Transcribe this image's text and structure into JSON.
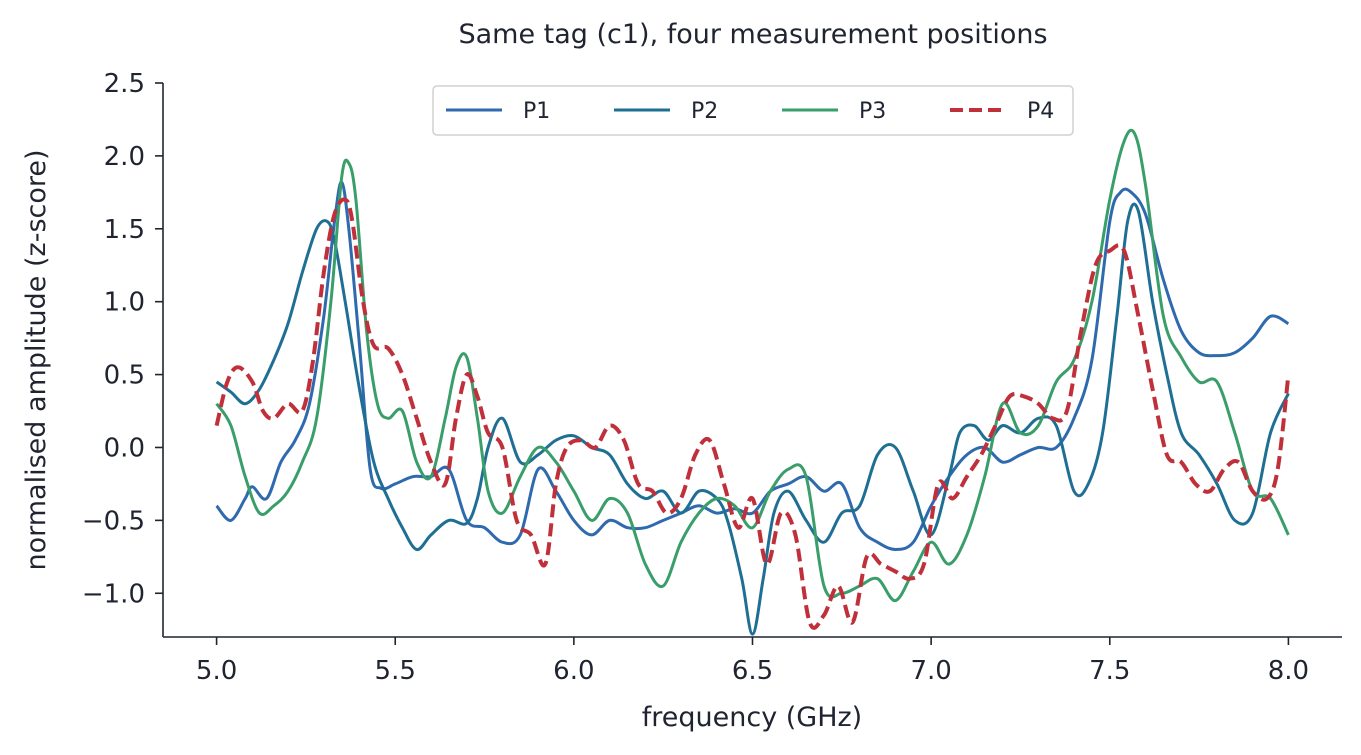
{
  "chart_data": {
    "type": "line",
    "title": "Same tag (c1), four measurement positions",
    "xlabel": "frequency (GHz)",
    "ylabel": "normalised amplitude (z-score)",
    "xlim": [
      4.85,
      8.15
    ],
    "ylim": [
      -1.3,
      2.5
    ],
    "xticks": [
      5.0,
      5.5,
      6.0,
      6.5,
      7.0,
      7.5,
      8.0
    ],
    "xtick_labels": [
      "5.0",
      "5.5",
      "6.0",
      "6.5",
      "7.0",
      "7.5",
      "8.0"
    ],
    "yticks": [
      -1.0,
      -0.5,
      0.0,
      0.5,
      1.0,
      1.5,
      2.0,
      2.5
    ],
    "ytick_labels": [
      "−1.0",
      "−0.5",
      "0.0",
      "0.5",
      "1.0",
      "1.5",
      "2.0",
      "2.5"
    ],
    "grid": false,
    "legend_position": "top-center",
    "series": [
      {
        "name": "P1",
        "color": "#2e6aad",
        "dash": "solid",
        "x": [
          5.0,
          5.04,
          5.08,
          5.1,
          5.14,
          5.18,
          5.22,
          5.26,
          5.3,
          5.33,
          5.35,
          5.37,
          5.4,
          5.43,
          5.46,
          5.5,
          5.55,
          5.6,
          5.65,
          5.7,
          5.75,
          5.8,
          5.85,
          5.9,
          5.95,
          6.0,
          6.05,
          6.1,
          6.15,
          6.2,
          6.25,
          6.3,
          6.35,
          6.4,
          6.45,
          6.5,
          6.55,
          6.6,
          6.65,
          6.7,
          6.75,
          6.8,
          6.85,
          6.9,
          6.95,
          7.0,
          7.05,
          7.1,
          7.15,
          7.2,
          7.25,
          7.3,
          7.35,
          7.4,
          7.45,
          7.5,
          7.53,
          7.56,
          7.6,
          7.65,
          7.7,
          7.75,
          7.8,
          7.85,
          7.9,
          7.95,
          8.0
        ],
        "y": [
          -0.4,
          -0.5,
          -0.35,
          -0.27,
          -0.35,
          -0.1,
          0.05,
          0.3,
          0.9,
          1.55,
          1.82,
          1.5,
          0.7,
          -0.15,
          -0.28,
          -0.25,
          -0.2,
          -0.2,
          -0.15,
          -0.5,
          -0.55,
          -0.65,
          -0.6,
          -0.15,
          -0.3,
          -0.5,
          -0.6,
          -0.5,
          -0.55,
          -0.55,
          -0.5,
          -0.45,
          -0.4,
          -0.45,
          -0.42,
          -0.45,
          -0.3,
          -0.25,
          -0.2,
          -0.3,
          -0.25,
          -0.55,
          -0.65,
          -0.7,
          -0.65,
          -0.4,
          -0.2,
          -0.05,
          0.0,
          -0.1,
          -0.05,
          0.0,
          0.0,
          0.2,
          0.6,
          1.55,
          1.75,
          1.75,
          1.6,
          1.15,
          0.8,
          0.65,
          0.63,
          0.65,
          0.75,
          0.9,
          0.85
        ]
      },
      {
        "name": "P2",
        "color": "#1f6f94",
        "dash": "solid",
        "x": [
          5.0,
          5.04,
          5.08,
          5.12,
          5.16,
          5.2,
          5.24,
          5.28,
          5.31,
          5.33,
          5.36,
          5.4,
          5.44,
          5.48,
          5.52,
          5.56,
          5.6,
          5.65,
          5.7,
          5.73,
          5.76,
          5.8,
          5.85,
          5.9,
          5.95,
          6.0,
          6.05,
          6.1,
          6.15,
          6.2,
          6.25,
          6.3,
          6.35,
          6.4,
          6.43,
          6.47,
          6.5,
          6.53,
          6.56,
          6.6,
          6.65,
          6.7,
          6.75,
          6.8,
          6.85,
          6.9,
          6.95,
          7.0,
          7.05,
          7.08,
          7.12,
          7.16,
          7.2,
          7.25,
          7.3,
          7.35,
          7.4,
          7.44,
          7.48,
          7.52,
          7.55,
          7.58,
          7.62,
          7.66,
          7.7,
          7.75,
          7.8,
          7.85,
          7.9,
          7.95,
          8.0
        ],
        "y": [
          0.45,
          0.38,
          0.3,
          0.4,
          0.6,
          0.85,
          1.2,
          1.5,
          1.55,
          1.42,
          1.0,
          0.4,
          -0.1,
          -0.35,
          -0.55,
          -0.7,
          -0.6,
          -0.5,
          -0.52,
          -0.35,
          0.0,
          0.2,
          -0.1,
          -0.05,
          0.05,
          0.08,
          0.0,
          -0.05,
          -0.25,
          -0.35,
          -0.3,
          -0.45,
          -0.3,
          -0.35,
          -0.5,
          -0.9,
          -1.28,
          -0.9,
          -0.45,
          -0.3,
          -0.5,
          -0.65,
          -0.45,
          -0.4,
          -0.05,
          0.0,
          -0.3,
          -0.6,
          -0.2,
          0.1,
          0.15,
          0.05,
          0.15,
          0.1,
          0.2,
          0.15,
          -0.3,
          -0.25,
          0.1,
          0.9,
          1.55,
          1.62,
          1.0,
          0.5,
          0.1,
          -0.05,
          -0.25,
          -0.5,
          -0.45,
          0.1,
          0.37
        ]
      },
      {
        "name": "P3",
        "color": "#3a9e6b",
        "dash": "solid",
        "x": [
          5.0,
          5.04,
          5.08,
          5.12,
          5.16,
          5.2,
          5.24,
          5.28,
          5.32,
          5.35,
          5.37,
          5.39,
          5.42,
          5.45,
          5.48,
          5.52,
          5.56,
          5.6,
          5.64,
          5.67,
          5.7,
          5.73,
          5.76,
          5.8,
          5.85,
          5.9,
          5.95,
          6.0,
          6.05,
          6.1,
          6.15,
          6.2,
          6.25,
          6.3,
          6.35,
          6.4,
          6.45,
          6.5,
          6.55,
          6.6,
          6.65,
          6.7,
          6.75,
          6.8,
          6.85,
          6.9,
          6.95,
          7.0,
          7.05,
          7.1,
          7.15,
          7.2,
          7.25,
          7.3,
          7.35,
          7.4,
          7.45,
          7.5,
          7.54,
          7.57,
          7.6,
          7.65,
          7.7,
          7.75,
          7.8,
          7.85,
          7.9,
          7.95,
          8.0
        ],
        "y": [
          0.3,
          0.15,
          -0.2,
          -0.45,
          -0.4,
          -0.3,
          -0.1,
          0.2,
          1.0,
          1.85,
          1.95,
          1.7,
          0.8,
          0.3,
          0.2,
          0.25,
          -0.1,
          -0.2,
          0.2,
          0.55,
          0.62,
          0.2,
          -0.3,
          -0.45,
          -0.2,
          0.0,
          -0.1,
          -0.3,
          -0.5,
          -0.35,
          -0.45,
          -0.8,
          -0.95,
          -0.65,
          -0.45,
          -0.35,
          -0.4,
          -0.55,
          -0.3,
          -0.15,
          -0.2,
          -0.95,
          -1.0,
          -0.95,
          -0.9,
          -1.05,
          -0.85,
          -0.65,
          -0.8,
          -0.6,
          -0.2,
          0.3,
          0.1,
          0.15,
          0.45,
          0.6,
          1.0,
          1.7,
          2.1,
          2.15,
          1.8,
          0.9,
          0.62,
          0.45,
          0.45,
          0.1,
          -0.3,
          -0.35,
          -0.6
        ]
      },
      {
        "name": "P4",
        "color": "#c0303a",
        "dash": "dashed",
        "x": [
          5.0,
          5.03,
          5.06,
          5.1,
          5.13,
          5.16,
          5.2,
          5.24,
          5.27,
          5.3,
          5.33,
          5.36,
          5.38,
          5.41,
          5.44,
          5.48,
          5.52,
          5.56,
          5.6,
          5.64,
          5.67,
          5.7,
          5.73,
          5.76,
          5.8,
          5.84,
          5.88,
          5.92,
          5.95,
          5.98,
          6.02,
          6.06,
          6.1,
          6.14,
          6.18,
          6.22,
          6.26,
          6.3,
          6.34,
          6.38,
          6.42,
          6.46,
          6.5,
          6.54,
          6.58,
          6.62,
          6.66,
          6.7,
          6.74,
          6.78,
          6.82,
          6.86,
          6.9,
          6.94,
          6.98,
          7.02,
          7.06,
          7.1,
          7.14,
          7.18,
          7.22,
          7.26,
          7.3,
          7.34,
          7.38,
          7.42,
          7.46,
          7.5,
          7.54,
          7.58,
          7.62,
          7.66,
          7.7,
          7.74,
          7.78,
          7.82,
          7.86,
          7.9,
          7.94,
          7.97,
          8.0
        ],
        "y": [
          0.15,
          0.45,
          0.55,
          0.45,
          0.25,
          0.2,
          0.3,
          0.25,
          0.6,
          1.2,
          1.6,
          1.7,
          1.55,
          1.0,
          0.7,
          0.68,
          0.5,
          0.2,
          -0.1,
          -0.25,
          0.2,
          0.5,
          0.35,
          0.1,
          0.0,
          -0.5,
          -0.6,
          -0.8,
          -0.25,
          0.0,
          0.05,
          0.0,
          0.15,
          0.05,
          -0.25,
          -0.3,
          -0.45,
          -0.35,
          -0.05,
          0.05,
          -0.25,
          -0.55,
          -0.35,
          -0.8,
          -0.45,
          -0.6,
          -1.2,
          -1.15,
          -0.95,
          -1.2,
          -0.75,
          -0.8,
          -0.85,
          -0.9,
          -0.8,
          -0.25,
          -0.35,
          -0.2,
          -0.05,
          0.15,
          0.35,
          0.35,
          0.3,
          0.2,
          0.25,
          0.8,
          1.25,
          1.35,
          1.35,
          0.9,
          0.4,
          -0.05,
          -0.1,
          -0.25,
          -0.3,
          -0.15,
          -0.1,
          -0.3,
          -0.35,
          -0.15,
          0.5
        ]
      }
    ]
  }
}
